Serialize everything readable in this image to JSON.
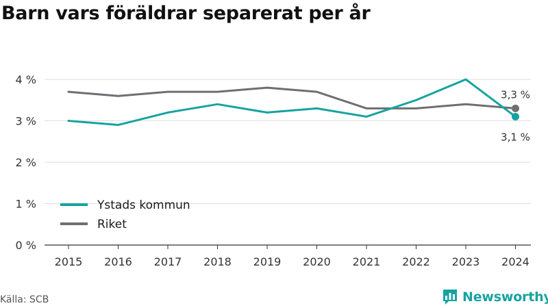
{
  "title": "Barn vars föräldrar separerat per år",
  "source": "Källa: SCB",
  "brand": {
    "name": "Newsworthy",
    "icon": "newsworthy-chart-icon",
    "color": "#16a3a0"
  },
  "chart_data": {
    "type": "line",
    "title": "Barn vars föräldrar separerat per år",
    "x": [
      "2015",
      "2016",
      "2017",
      "2018",
      "2019",
      "2020",
      "2021",
      "2022",
      "2023",
      "2024"
    ],
    "series": [
      {
        "name": "Ystads kommun",
        "color": "#16a3a0",
        "values": [
          3.0,
          2.9,
          3.2,
          3.4,
          3.2,
          3.3,
          3.1,
          3.5,
          4.0,
          3.1
        ],
        "end_label": "3,1 %"
      },
      {
        "name": "Riket",
        "color": "#6e6e73",
        "values": [
          3.7,
          3.6,
          3.7,
          3.7,
          3.8,
          3.7,
          3.3,
          3.3,
          3.4,
          3.3
        ],
        "end_label": "3,3 %"
      }
    ],
    "yticks": [
      "0 %",
      "1 %",
      "2 %",
      "3 %",
      "4 %"
    ],
    "ylim": [
      0,
      4
    ],
    "grid": "horizontal",
    "legend": "bottom-left",
    "xlabel": "",
    "ylabel": ""
  }
}
